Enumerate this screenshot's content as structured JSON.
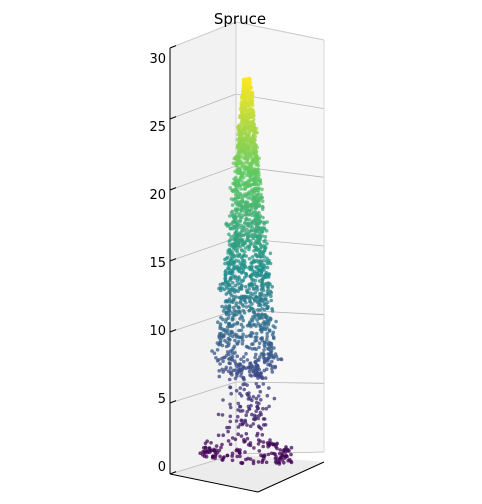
{
  "chart_data": {
    "type": "scatter",
    "projection": "3d",
    "title": "Spruce",
    "xlabel": "",
    "ylabel": "",
    "zlabel": "",
    "zlim": [
      0,
      30
    ],
    "z_ticks": [
      "0",
      "5",
      "10",
      "15",
      "20",
      "25",
      "30"
    ],
    "grid": true,
    "colormap": "viridis",
    "color_by": "z",
    "colormap_stops": [
      "#440154",
      "#3b528b",
      "#21918c",
      "#5ec962",
      "#fde725"
    ],
    "series": [
      {
        "name": "",
        "shape": "tapering cone of points",
        "points_approx": 2200,
        "z_range": [
          0,
          28.5
        ]
      }
    ]
  }
}
